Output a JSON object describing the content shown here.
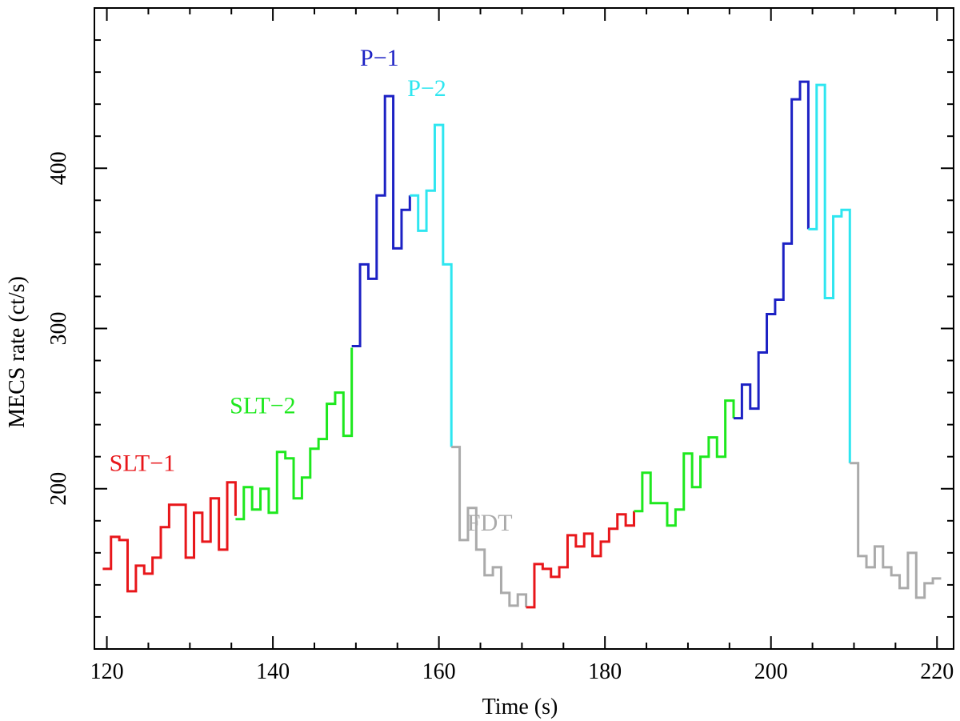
{
  "chart_data": {
    "type": "line",
    "step": true,
    "title": "",
    "xlabel": "Time (s)",
    "ylabel": "MECS rate (ct/s)",
    "xlim": [
      118.5,
      222
    ],
    "ylim": [
      100,
      500
    ],
    "xticks": [
      120,
      140,
      160,
      180,
      200,
      220
    ],
    "yticks": [
      200,
      300,
      400
    ],
    "grid": false,
    "legend": "none",
    "annotations": [
      {
        "text": "SLT−1",
        "color": "#e8161a",
        "x": 120.3,
        "y": 211
      },
      {
        "text": "SLT−2",
        "color": "#1ee81e",
        "x": 134.8,
        "y": 247
      },
      {
        "text": "P−1",
        "color": "#1c21c4",
        "x": 150.5,
        "y": 464
      },
      {
        "text": "P−2",
        "color": "#2ee6f0",
        "x": 156.2,
        "y": 445
      },
      {
        "text": "FDT",
        "color": "#aaaaaa",
        "x": 163.4,
        "y": 174
      }
    ],
    "series": [
      {
        "color": "#e8161a",
        "x": [
          119.5,
          120.5,
          121.5,
          122.5,
          123.5,
          124.5,
          125.5,
          126.5,
          127.5,
          128.5,
          129.5,
          130.5,
          131.5,
          132.5,
          133.5,
          134.5,
          135.5
        ],
        "y": [
          150,
          170,
          168,
          136,
          152,
          147,
          157,
          176,
          190,
          190,
          157,
          185,
          167,
          194,
          162,
          204,
          183
        ]
      },
      {
        "color": "#1ee81e",
        "x": [
          135.5,
          136.5,
          137.5,
          138.5,
          139.5,
          140.5,
          141.5,
          142.5,
          143.5,
          144.5,
          145.5,
          146.5,
          147.5,
          148.5,
          149.5
        ],
        "y": [
          181,
          201,
          187,
          200,
          185,
          223,
          219,
          194,
          207,
          225,
          231,
          253,
          260,
          233,
          288
        ]
      },
      {
        "color": "#1c21c4",
        "x": [
          149.5,
          150.5,
          151.5,
          152.5,
          153.5,
          154.5,
          155.5,
          156.5
        ],
        "y": [
          289,
          340,
          331,
          383,
          445,
          350,
          374,
          383
        ]
      },
      {
        "color": "#2ee6f0",
        "x": [
          156.5,
          157.5,
          158.5,
          159.5,
          160.5,
          161.5
        ],
        "y": [
          383,
          361,
          386,
          427,
          340,
          226
        ]
      },
      {
        "color": "#aaaaaa",
        "x": [
          161.5,
          162.5,
          163.5,
          164.5,
          165.5,
          166.5,
          167.5,
          168.5,
          169.5,
          170.5
        ],
        "y": [
          226,
          168,
          188,
          162,
          146,
          151,
          135,
          127,
          134,
          126
        ]
      },
      {
        "color": "#e8161a",
        "x": [
          170.5,
          171.5,
          172.5,
          173.5,
          174.5,
          175.5,
          176.5,
          177.5,
          178.5,
          179.5,
          180.5,
          181.5,
          182.5,
          183.5
        ],
        "y": [
          126,
          153,
          150,
          145,
          151,
          171,
          164,
          172,
          158,
          167,
          175,
          184,
          177,
          186
        ]
      },
      {
        "color": "#1ee81e",
        "x": [
          183.5,
          184.5,
          185.5,
          186.5,
          187.5,
          188.5,
          189.5,
          190.5,
          191.5,
          192.5,
          193.5,
          194.5,
          195.5
        ],
        "y": [
          186,
          210,
          191,
          191,
          177,
          187,
          222,
          201,
          220,
          232,
          220,
          255,
          244
        ]
      },
      {
        "color": "#1c21c4",
        "x": [
          195.5,
          196.5,
          197.5,
          198.5,
          199.5,
          200.5,
          201.5,
          202.5,
          203.5,
          204.5
        ],
        "y": [
          244,
          265,
          250,
          285,
          309,
          318,
          353,
          443,
          454,
          362
        ]
      },
      {
        "color": "#2ee6f0",
        "x": [
          204.5,
          205.5,
          206.5,
          207.5,
          208.5,
          209.5
        ],
        "y": [
          362,
          452,
          319,
          370,
          374,
          216
        ]
      },
      {
        "color": "#aaaaaa",
        "x": [
          209.5,
          210.5,
          211.5,
          212.5,
          213.5,
          214.5,
          215.5,
          216.5,
          217.5,
          218.5,
          219.5,
          220.5
        ],
        "y": [
          216,
          158,
          151,
          164,
          151,
          146,
          138,
          160,
          132,
          141,
          144,
          144
        ]
      }
    ]
  }
}
